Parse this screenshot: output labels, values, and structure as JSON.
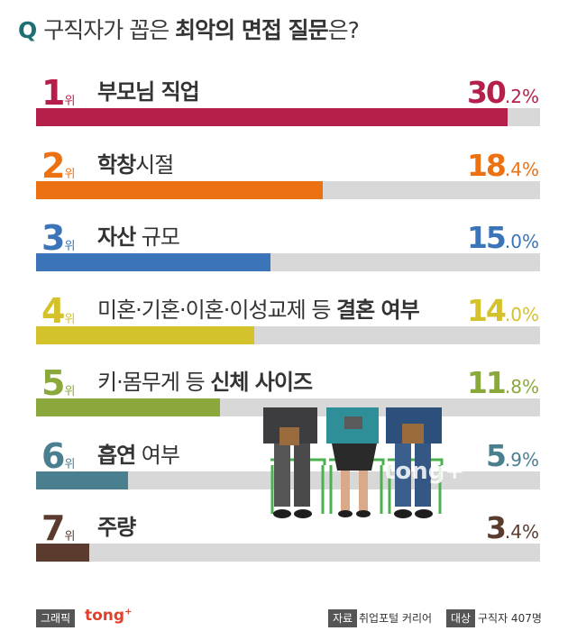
{
  "title": {
    "prefix": "Q",
    "part1": "구직자가 꼽은",
    "part2": "최악의 면접 질문",
    "part3": "은?"
  },
  "chart_data": {
    "type": "bar",
    "orientation": "horizontal",
    "title": "구직자가 꼽은 최악의 면접 질문은?",
    "unit": "%",
    "rank_suffix": "위",
    "items": [
      {
        "rank": "1",
        "label_plain": "",
        "label_bold": "부모님 직업",
        "label_after": "",
        "value": 30.2,
        "value_int": "30",
        "value_dec": ".2%",
        "color": "#b5204a"
      },
      {
        "rank": "2",
        "label_plain": "",
        "label_bold": "학창",
        "label_after": "시절",
        "value": 18.4,
        "value_int": "18",
        "value_dec": ".4%",
        "color": "#ec7112"
      },
      {
        "rank": "3",
        "label_plain": "",
        "label_bold": "자산",
        "label_after": " 규모",
        "value": 15.0,
        "value_int": "15",
        "value_dec": ".0%",
        "color": "#3b74b9"
      },
      {
        "rank": "4",
        "label_plain": "미혼·기혼·이혼·이성교제 등 ",
        "label_bold": "결혼 여부",
        "label_after": "",
        "value": 14.0,
        "value_int": "14",
        "value_dec": ".0%",
        "color": "#d3c22b"
      },
      {
        "rank": "5",
        "label_plain": "키·몸무게 등 ",
        "label_bold": "신체 사이즈",
        "label_after": "",
        "value": 11.8,
        "value_int": "11",
        "value_dec": ".8%",
        "color": "#8aa83b"
      },
      {
        "rank": "6",
        "label_plain": "",
        "label_bold": "흡연",
        "label_after": " 여부",
        "value": 5.9,
        "value_int": "5",
        "value_dec": ".9%",
        "color": "#4a7f90"
      },
      {
        "rank": "7",
        "label_plain": "",
        "label_bold": "주량",
        "label_after": "",
        "value": 3.4,
        "value_int": "3",
        "value_dec": ".4%",
        "color": "#5a3b2e"
      }
    ],
    "xlim": [
      0,
      32.3
    ],
    "grid": false,
    "legend": "none"
  },
  "watermark": "tong+",
  "footer": {
    "graphic_tag": "그래픽",
    "brand": "tong",
    "brand_plus": "+",
    "source_tag": "자료",
    "source": "취업포털 커리어",
    "target_tag": "대상",
    "target": "구직자 407명"
  }
}
